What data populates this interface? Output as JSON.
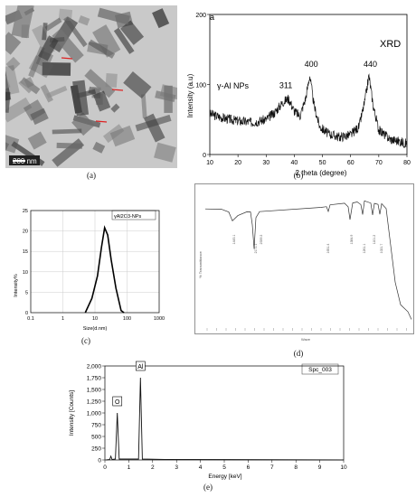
{
  "captions": {
    "a": "(a)",
    "b": "(b)",
    "c": "(c)",
    "d": "(d)",
    "e": "(e)"
  },
  "tem": {
    "scale_label": "200 nm"
  },
  "chart_data": [
    {
      "id": "xrd",
      "type": "line",
      "panel_letter": "a",
      "title": "XRD",
      "xlabel": "2 theta (degree)",
      "ylabel": "Intensity (a.u)",
      "xlim": [
        10,
        80
      ],
      "ylim": [
        0,
        200
      ],
      "xticks": [
        10,
        20,
        30,
        40,
        50,
        60,
        70,
        80
      ],
      "yticks": [
        0,
        100,
        200
      ],
      "series": [
        {
          "name": "γ-Al NPs"
        }
      ],
      "x": [
        10,
        15,
        20,
        25,
        30,
        33,
        36,
        38,
        40,
        42,
        44,
        45.5,
        47,
        49,
        52,
        56,
        60,
        63,
        65,
        66.5,
        68,
        70,
        74,
        78,
        80
      ],
      "y": [
        58,
        52,
        48,
        46,
        50,
        60,
        75,
        80,
        62,
        55,
        80,
        113,
        70,
        40,
        30,
        25,
        28,
        40,
        75,
        113,
        70,
        35,
        22,
        18,
        15
      ],
      "peak_labels": [
        {
          "x": 37,
          "y": 95,
          "text": "311"
        },
        {
          "x": 46,
          "y": 125,
          "text": "400"
        },
        {
          "x": 67,
          "y": 125,
          "text": "440"
        }
      ]
    },
    {
      "id": "dls",
      "type": "line",
      "xscale": "log",
      "xlabel": "Size(d.nm)",
      "ylabel": "Intensity%",
      "xlim": [
        0.1,
        1000
      ],
      "ylim": [
        0,
        25
      ],
      "xticks": [
        0.1,
        1,
        10,
        100,
        1000
      ],
      "xtick_labels": [
        "0.1",
        "1",
        "10",
        "100",
        "1000"
      ],
      "yticks": [
        0,
        5,
        10,
        15,
        20,
        25
      ],
      "series": [
        {
          "name": "γAl2O3-NPs"
        }
      ],
      "x": [
        5,
        8,
        12,
        16,
        20,
        25,
        32,
        45,
        65,
        80
      ],
      "y": [
        0,
        3.5,
        9,
        16,
        20.8,
        19,
        13,
        6,
        0.5,
        0
      ]
    },
    {
      "id": "ftir",
      "type": "line",
      "xlabel": "Wave",
      "ylabel": "% Transmittance",
      "ylim": [
        0,
        100
      ],
      "peak_labels": [
        "1445.1",
        "2171.1",
        "2339.2",
        "1651.4",
        "1384.9",
        "1261.1",
        "1101.2",
        "1021.7"
      ]
    },
    {
      "id": "eds",
      "type": "line",
      "xlabel": "Energy [keV]",
      "ylabel": "Intensity [Counts]",
      "legend": "Spc_003",
      "xlim": [
        0,
        10
      ],
      "ylim": [
        0,
        2000
      ],
      "xticks": [
        0,
        1,
        2,
        3,
        4,
        5,
        6,
        7,
        8,
        9,
        10
      ],
      "yticks": [
        0,
        250,
        500,
        750,
        1000,
        1250,
        1500,
        1750,
        2000
      ],
      "ytick_labels": [
        "0",
        "250",
        "500",
        "750",
        "1,000",
        "1,250",
        "1,500",
        "1,750",
        "2,000"
      ],
      "peaks": [
        {
          "label": "O",
          "energy": 0.52,
          "counts": 1000
        },
        {
          "label": "Al",
          "energy": 1.49,
          "counts": 1750
        }
      ]
    }
  ]
}
